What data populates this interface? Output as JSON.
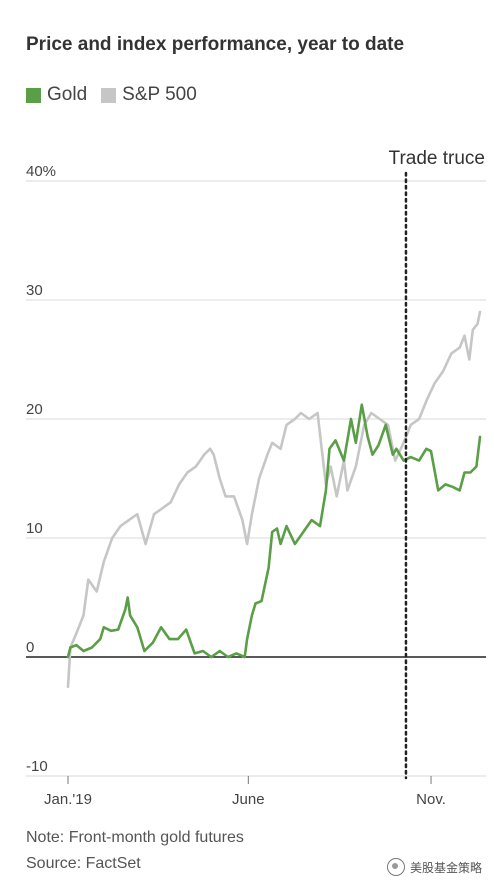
{
  "chart_data": {
    "type": "line",
    "title": "Price and index performance, year to date",
    "xlabel": "",
    "ylabel": "",
    "ylim": [
      -10,
      40
    ],
    "y_ticks": [
      {
        "value": 40,
        "label": "40%"
      },
      {
        "value": 30,
        "label": "30"
      },
      {
        "value": 20,
        "label": "20"
      },
      {
        "value": 10,
        "label": "10"
      },
      {
        "value": 0,
        "label": "0"
      },
      {
        "value": -10,
        "label": "-10"
      }
    ],
    "x_ticks": [
      {
        "value": "2019-01-01",
        "label": "Jan.'19"
      },
      {
        "value": "2019-06-01",
        "label": "June"
      },
      {
        "value": "2019-11-01",
        "label": "Nov."
      }
    ],
    "xlim": [
      "2019-01-01",
      "2019-12-12"
    ],
    "grid": "horizontal",
    "legend_position": "top-left",
    "annotations": [
      {
        "x": "2019-10-11",
        "label": "Trade truce",
        "style": "dotted-vertical-line"
      }
    ],
    "series": [
      {
        "name": "Gold",
        "color": "#5a9e47",
        "points": [
          [
            "2019-01-01",
            0
          ],
          [
            "2019-01-03",
            0.8
          ],
          [
            "2019-01-08",
            1
          ],
          [
            "2019-01-14",
            0.5
          ],
          [
            "2019-01-21",
            0.8
          ],
          [
            "2019-01-28",
            1.5
          ],
          [
            "2019-01-31",
            2.5
          ],
          [
            "2019-02-06",
            2.2
          ],
          [
            "2019-02-12",
            2.3
          ],
          [
            "2019-02-18",
            4
          ],
          [
            "2019-02-20",
            5
          ],
          [
            "2019-02-22",
            3.5
          ],
          [
            "2019-02-28",
            2.5
          ],
          [
            "2019-03-06",
            0.5
          ],
          [
            "2019-03-13",
            1.2
          ],
          [
            "2019-03-20",
            2.5
          ],
          [
            "2019-03-27",
            1.5
          ],
          [
            "2019-04-03",
            1.5
          ],
          [
            "2019-04-10",
            2.3
          ],
          [
            "2019-04-17",
            0.3
          ],
          [
            "2019-04-24",
            0.5
          ],
          [
            "2019-05-01",
            0
          ],
          [
            "2019-05-08",
            0.5
          ],
          [
            "2019-05-15",
            0
          ],
          [
            "2019-05-22",
            0.3
          ],
          [
            "2019-05-29",
            0
          ],
          [
            "2019-05-31",
            1.5
          ],
          [
            "2019-06-04",
            3.5
          ],
          [
            "2019-06-07",
            4.5
          ],
          [
            "2019-06-12",
            4.7
          ],
          [
            "2019-06-18",
            7.5
          ],
          [
            "2019-06-21",
            10.5
          ],
          [
            "2019-06-25",
            10.8
          ],
          [
            "2019-06-28",
            9.5
          ],
          [
            "2019-07-03",
            11
          ],
          [
            "2019-07-10",
            9.5
          ],
          [
            "2019-07-17",
            10.5
          ],
          [
            "2019-07-24",
            11.5
          ],
          [
            "2019-07-31",
            11
          ],
          [
            "2019-08-05",
            14
          ],
          [
            "2019-08-08",
            17.5
          ],
          [
            "2019-08-13",
            18.2
          ],
          [
            "2019-08-20",
            16.5
          ],
          [
            "2019-08-26",
            20
          ],
          [
            "2019-08-30",
            18
          ],
          [
            "2019-09-04",
            21.2
          ],
          [
            "2019-09-09",
            18.5
          ],
          [
            "2019-09-13",
            17
          ],
          [
            "2019-09-18",
            17.8
          ],
          [
            "2019-09-24",
            19.5
          ],
          [
            "2019-09-30",
            17
          ],
          [
            "2019-10-03",
            17.5
          ],
          [
            "2019-10-09",
            16.5
          ],
          [
            "2019-10-15",
            16.8
          ],
          [
            "2019-10-22",
            16.5
          ],
          [
            "2019-10-28",
            17.5
          ],
          [
            "2019-11-01",
            17.3
          ],
          [
            "2019-11-07",
            14
          ],
          [
            "2019-11-13",
            14.5
          ],
          [
            "2019-11-19",
            14.3
          ],
          [
            "2019-11-25",
            14
          ],
          [
            "2019-11-29",
            15.5
          ],
          [
            "2019-12-04",
            15.5
          ],
          [
            "2019-12-09",
            16
          ],
          [
            "2019-12-12",
            18.5
          ]
        ]
      },
      {
        "name": "S&P 500",
        "color": "#c6c6c6",
        "points": [
          [
            "2019-01-01",
            -2.5
          ],
          [
            "2019-01-03",
            0.8
          ],
          [
            "2019-01-08",
            2
          ],
          [
            "2019-01-14",
            3.5
          ],
          [
            "2019-01-18",
            6.5
          ],
          [
            "2019-01-25",
            5.5
          ],
          [
            "2019-01-31",
            8
          ],
          [
            "2019-02-07",
            10
          ],
          [
            "2019-02-14",
            11
          ],
          [
            "2019-02-21",
            11.5
          ],
          [
            "2019-02-28",
            12
          ],
          [
            "2019-03-07",
            9.5
          ],
          [
            "2019-03-14",
            12
          ],
          [
            "2019-03-21",
            12.5
          ],
          [
            "2019-03-28",
            13
          ],
          [
            "2019-04-04",
            14.5
          ],
          [
            "2019-04-11",
            15.5
          ],
          [
            "2019-04-18",
            16
          ],
          [
            "2019-04-25",
            17
          ],
          [
            "2019-04-30",
            17.5
          ],
          [
            "2019-05-03",
            17
          ],
          [
            "2019-05-08",
            15
          ],
          [
            "2019-05-13",
            13.5
          ],
          [
            "2019-05-20",
            13.5
          ],
          [
            "2019-05-27",
            11.5
          ],
          [
            "2019-05-31",
            9.5
          ],
          [
            "2019-06-04",
            12
          ],
          [
            "2019-06-10",
            15
          ],
          [
            "2019-06-17",
            17
          ],
          [
            "2019-06-21",
            18
          ],
          [
            "2019-06-28",
            17.5
          ],
          [
            "2019-07-03",
            19.5
          ],
          [
            "2019-07-10",
            20
          ],
          [
            "2019-07-15",
            20.5
          ],
          [
            "2019-07-22",
            20
          ],
          [
            "2019-07-29",
            20.5
          ],
          [
            "2019-08-02",
            17
          ],
          [
            "2019-08-05",
            14.5
          ],
          [
            "2019-08-09",
            16
          ],
          [
            "2019-08-14",
            13.5
          ],
          [
            "2019-08-20",
            16.5
          ],
          [
            "2019-08-23",
            14
          ],
          [
            "2019-08-30",
            16
          ],
          [
            "2019-09-06",
            19.5
          ],
          [
            "2019-09-12",
            20.5
          ],
          [
            "2019-09-19",
            20
          ],
          [
            "2019-09-26",
            19.5
          ],
          [
            "2019-10-02",
            16.5
          ],
          [
            "2019-10-09",
            18
          ],
          [
            "2019-10-15",
            19.5
          ],
          [
            "2019-10-22",
            20
          ],
          [
            "2019-10-28",
            21.5
          ],
          [
            "2019-11-04",
            23
          ],
          [
            "2019-11-11",
            24
          ],
          [
            "2019-11-18",
            25.5
          ],
          [
            "2019-11-25",
            26
          ],
          [
            "2019-11-29",
            27
          ],
          [
            "2019-12-03",
            25
          ],
          [
            "2019-12-06",
            27.5
          ],
          [
            "2019-12-10",
            28
          ],
          [
            "2019-12-12",
            29
          ]
        ]
      }
    ]
  },
  "note": "Note: Front-month gold futures",
  "source": "Source: FactSet",
  "watermark": "美股基金策略"
}
